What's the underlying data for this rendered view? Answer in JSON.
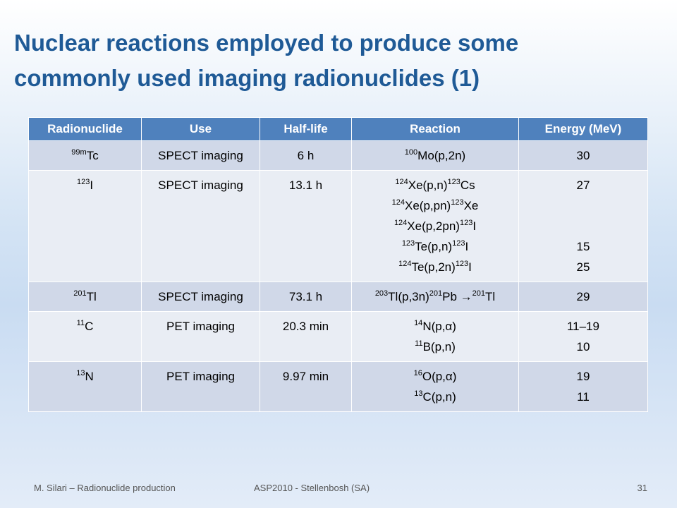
{
  "title": "Nuclear reactions employed to produce some commonly used imaging radionuclides (1)",
  "table": {
    "columns": [
      "Radionuclide",
      "Use",
      "Half-life",
      "Reaction",
      "Energy (MeV)"
    ],
    "rows": [
      [
        [
          [
            {
              "sup": "99m"
            },
            "Tc"
          ]
        ],
        [
          [
            "SPECT imaging"
          ]
        ],
        [
          [
            "6 h"
          ]
        ],
        [
          [
            {
              "sup": "100"
            },
            "Mo(p,2n)"
          ]
        ],
        [
          [
            "30"
          ]
        ]
      ],
      [
        [
          [
            {
              "sup": "123"
            },
            "I"
          ]
        ],
        [
          [
            "SPECT imaging"
          ]
        ],
        [
          [
            "13.1 h"
          ]
        ],
        [
          [
            {
              "sup": "124"
            },
            "Xe(p,n)",
            {
              "sup": "123"
            },
            "Cs"
          ],
          [
            {
              "sup": "124"
            },
            "Xe(p,pn)",
            {
              "sup": "123"
            },
            "Xe"
          ],
          [
            {
              "sup": "124"
            },
            "Xe(p,2pn)",
            {
              "sup": "123"
            },
            "I"
          ],
          [
            {
              "sup": "123"
            },
            "Te(p,n)",
            {
              "sup": "123"
            },
            "I"
          ],
          [
            {
              "sup": "124"
            },
            "Te(p,2n)",
            {
              "sup": "123"
            },
            "I"
          ]
        ],
        [
          [
            "27"
          ],
          null,
          null,
          [
            "15"
          ],
          [
            "25"
          ]
        ]
      ],
      [
        [
          [
            {
              "sup": "201"
            },
            "Tl"
          ]
        ],
        [
          [
            "SPECT imaging"
          ]
        ],
        [
          [
            "73.1 h"
          ]
        ],
        [
          [
            {
              "sup": "203"
            },
            "Tl(p,3n)",
            {
              "sup": "201"
            },
            "Pb →",
            {
              "sup": "201"
            },
            "Tl"
          ]
        ],
        [
          [
            "29"
          ]
        ]
      ],
      [
        [
          [
            {
              "sup": "11"
            },
            "C"
          ]
        ],
        [
          [
            "PET imaging"
          ]
        ],
        [
          [
            "20.3 min"
          ]
        ],
        [
          [
            {
              "sup": "14"
            },
            "N(p,α)"
          ],
          [
            {
              "sup": "11"
            },
            "B(p,n)"
          ]
        ],
        [
          [
            "11–19"
          ],
          [
            "10"
          ]
        ]
      ],
      [
        [
          [
            {
              "sup": "13"
            },
            "N"
          ]
        ],
        [
          [
            "PET imaging"
          ]
        ],
        [
          [
            "9.97 min"
          ]
        ],
        [
          [
            {
              "sup": "16"
            },
            "O(p,α)"
          ],
          [
            {
              "sup": "13"
            },
            "C(p,n)"
          ]
        ],
        [
          [
            "19"
          ],
          [
            "11"
          ]
        ]
      ]
    ]
  },
  "footer": {
    "author": "M. Silari – Radionuclide production",
    "event": "ASP2010 - Stellenbosh (SA)",
    "page": "31"
  }
}
